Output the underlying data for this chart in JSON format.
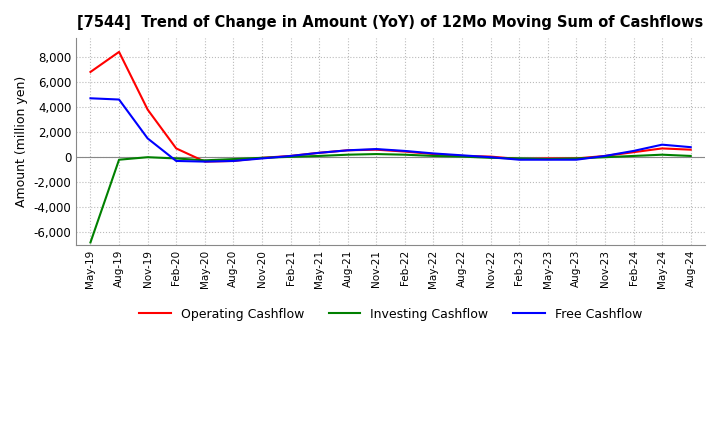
{
  "title": "[7544]  Trend of Change in Amount (YoY) of 12Mo Moving Sum of Cashflows",
  "ylabel": "Amount (million yen)",
  "ylim": [
    -7000,
    9500
  ],
  "yticks": [
    -6000,
    -4000,
    -2000,
    0,
    2000,
    4000,
    6000,
    8000
  ],
  "background_color": "#ffffff",
  "grid_color": "#bbbbbb",
  "x_labels": [
    "May-19",
    "Aug-19",
    "Nov-19",
    "Feb-20",
    "May-20",
    "Aug-20",
    "Nov-20",
    "Feb-21",
    "May-21",
    "Aug-21",
    "Nov-21",
    "Feb-22",
    "May-22",
    "Aug-22",
    "Nov-22",
    "Feb-23",
    "May-23",
    "Aug-23",
    "Nov-23",
    "Feb-24",
    "May-24",
    "Aug-24"
  ],
  "operating": [
    6800,
    8400,
    3800,
    700,
    -350,
    -300,
    -50,
    100,
    350,
    550,
    600,
    450,
    250,
    100,
    50,
    -150,
    -100,
    -100,
    100,
    400,
    700,
    600
  ],
  "investing": [
    -6800,
    -200,
    0,
    -100,
    -250,
    -150,
    -50,
    30,
    100,
    200,
    250,
    200,
    100,
    50,
    -50,
    -100,
    -150,
    -100,
    0,
    100,
    200,
    100
  ],
  "free": [
    4700,
    4600,
    1500,
    -300,
    -350,
    -300,
    -100,
    100,
    350,
    550,
    650,
    500,
    300,
    150,
    0,
    -200,
    -200,
    -200,
    100,
    500,
    1000,
    800
  ],
  "op_color": "#ff0000",
  "inv_color": "#008000",
  "free_color": "#0000ff"
}
